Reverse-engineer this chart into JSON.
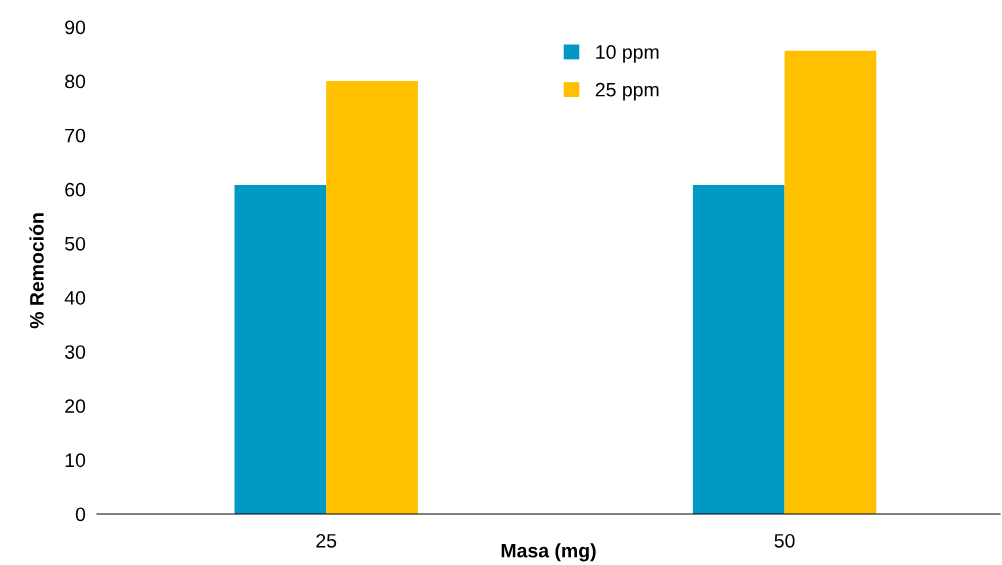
{
  "chart_data": {
    "type": "bar",
    "xlabel": "Masa (mg)",
    "ylabel": "% Remoción",
    "categories": [
      "25",
      "50"
    ],
    "series": [
      {
        "name": "10 ppm",
        "color": "#0098c4",
        "values": [
          60.8,
          60.8
        ]
      },
      {
        "name": "25 ppm",
        "color": "#ffc000",
        "values": [
          80,
          85.6
        ]
      }
    ],
    "ylim": [
      0,
      90
    ],
    "yticks": [
      0,
      10,
      20,
      30,
      40,
      50,
      60,
      70,
      80,
      90
    ],
    "grid": false,
    "legend": "top"
  }
}
